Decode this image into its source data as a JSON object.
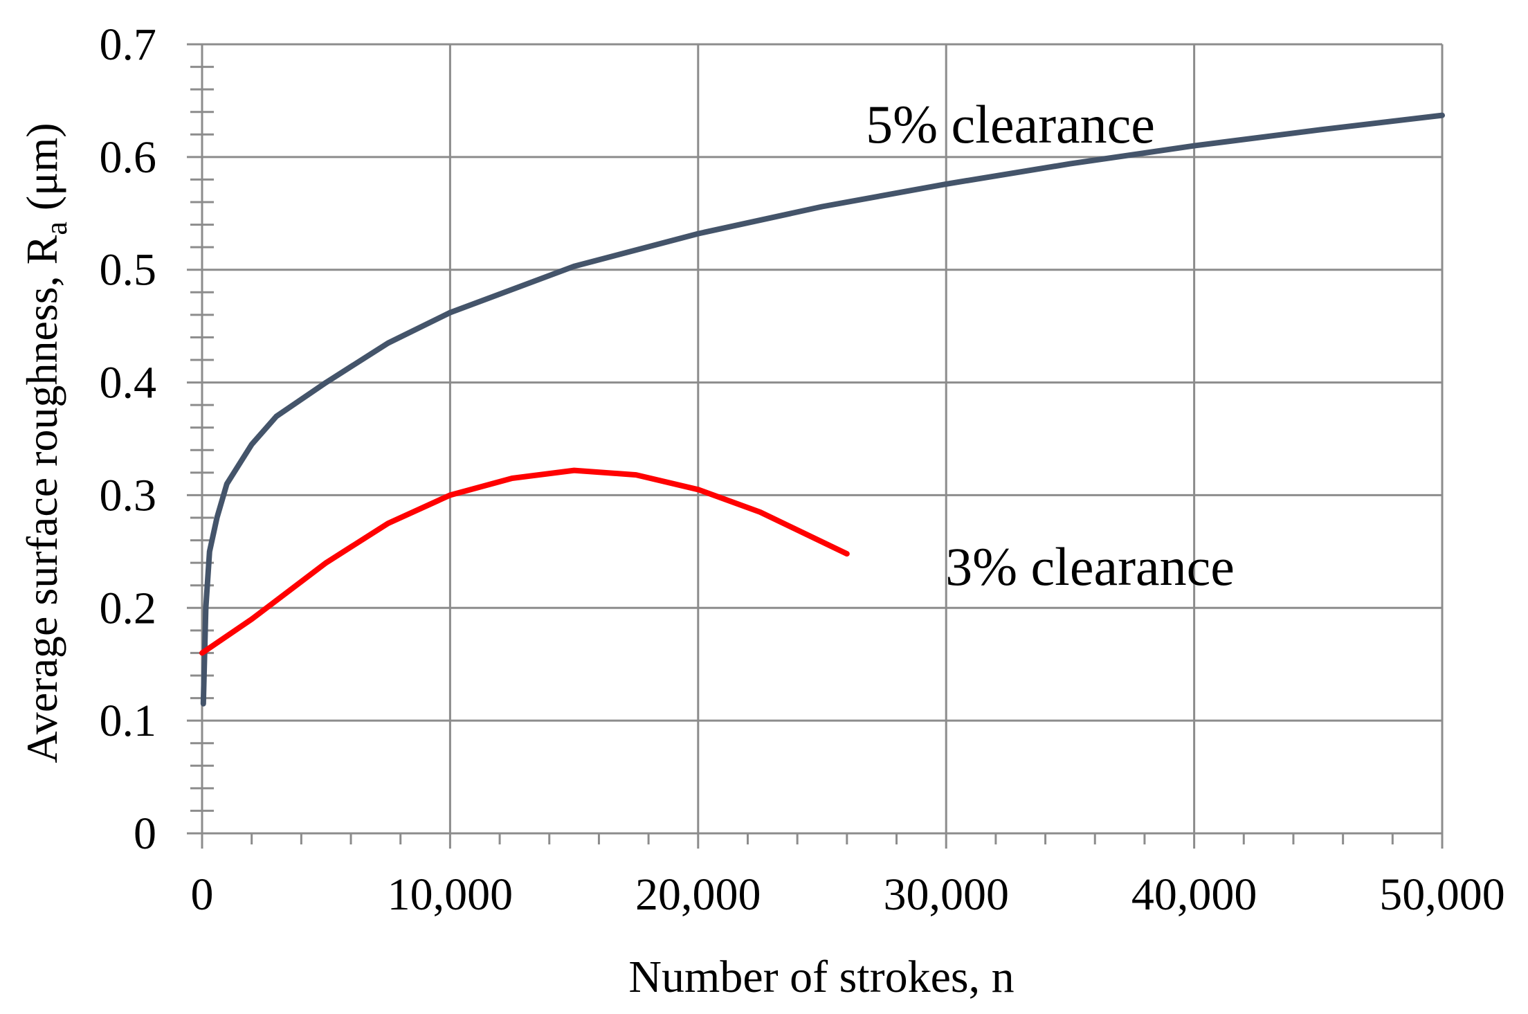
{
  "chart_data": {
    "type": "line",
    "x_label": "Number of strokes, n",
    "y_label": "Average surface roughness, R",
    "y_label_sub": "a",
    "y_label_unit": " (μm)",
    "xlim": [
      0,
      50000
    ],
    "xticks": [
      0,
      {
        "value": 10000,
        "label": "10,000"
      },
      {
        "value": 20000,
        "label": "20,000"
      },
      {
        "value": 30000,
        "label": "30,000"
      },
      {
        "value": 40000,
        "label": "40,000"
      },
      {
        "value": 50000,
        "label": "50,000"
      }
    ],
    "x_minor_ticks": [
      2000,
      4000,
      6000,
      8000,
      12000,
      14000,
      16000,
      18000,
      22000,
      24000,
      26000,
      28000,
      32000,
      34000,
      36000,
      38000,
      42000,
      44000,
      46000,
      48000
    ],
    "ylim": [
      0,
      0.7
    ],
    "yticks": [
      0,
      0.1,
      0.2,
      0.3,
      0.4,
      0.5,
      0.6,
      0.7
    ],
    "y_minor_ticks": [
      0.02,
      0.04,
      0.06,
      0.08,
      0.12,
      0.14,
      0.16,
      0.18,
      0.22,
      0.24,
      0.26,
      0.28,
      0.32,
      0.34,
      0.36,
      0.38,
      0.42,
      0.44,
      0.46,
      0.48,
      0.52,
      0.54,
      0.56,
      0.58,
      0.62,
      0.64,
      0.66,
      0.68
    ],
    "grid": true,
    "series": [
      {
        "name": "5% clearance",
        "color": "#44546a",
        "x": [
          50,
          150,
          300,
          600,
          1000,
          2000,
          3000,
          5000,
          7500,
          10000,
          15000,
          20000,
          25000,
          30000,
          35000,
          40000,
          45000,
          50000
        ],
        "values": [
          0.115,
          0.2,
          0.25,
          0.28,
          0.31,
          0.345,
          0.37,
          0.4,
          0.435,
          0.462,
          0.503,
          0.532,
          0.556,
          0.576,
          0.594,
          0.61,
          0.624,
          0.637
        ]
      },
      {
        "name": "3% clearance",
        "color": "#ff0000",
        "x": [
          0,
          2000,
          5000,
          7500,
          10000,
          12500,
          15000,
          17500,
          20000,
          22500,
          26000
        ],
        "values": [
          0.16,
          0.19,
          0.24,
          0.275,
          0.3,
          0.315,
          0.322,
          0.318,
          0.305,
          0.285,
          0.248
        ]
      }
    ]
  }
}
